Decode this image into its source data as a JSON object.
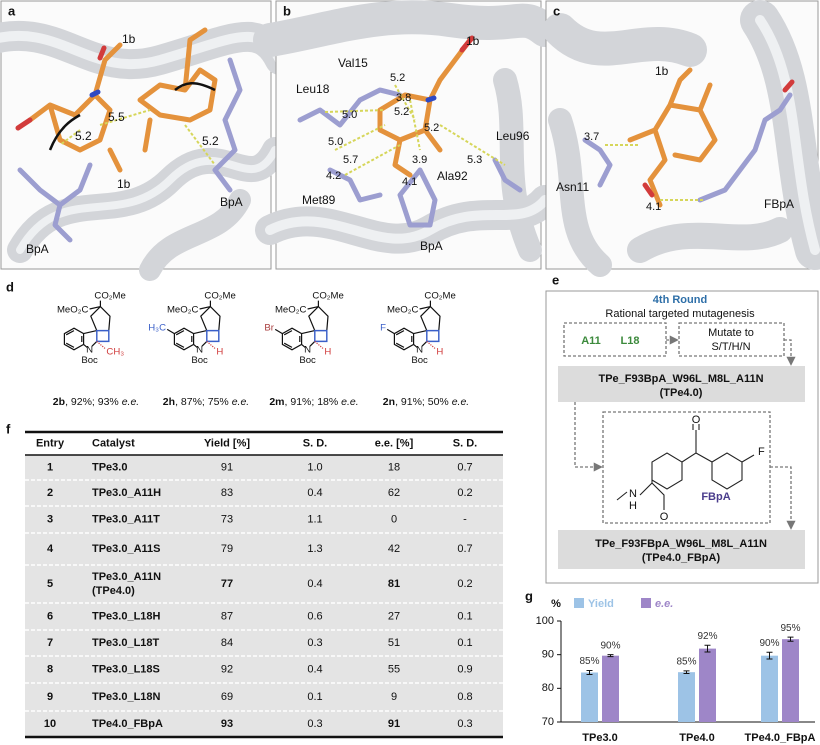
{
  "panel_a": {
    "label": "a",
    "texts": [
      "1b",
      "5.5",
      "5.2",
      "5.2",
      "1b",
      "BpA",
      "BpA"
    ]
  },
  "panel_b": {
    "label": "b",
    "texts": [
      "1b",
      "Val15",
      "5.2",
      "Leu18",
      "3.8",
      "5.0",
      "5.2",
      "5.2",
      "5.0",
      "5.7",
      "3.9",
      "4.2",
      "4.1",
      "Ala92",
      "5.3",
      "Leu96",
      "Met89",
      "BpA"
    ]
  },
  "panel_c": {
    "label": "c",
    "texts": [
      "1b",
      "3.7",
      "Asn11",
      "4.1",
      "FBpA"
    ]
  },
  "panel_d": {
    "label": "d",
    "compounds": [
      {
        "ester_top": "CO₂Me",
        "ester_left": "MeO₂C",
        "n": "N",
        "protecting_group": "Boc",
        "stereo": "CH₃",
        "id": "2b",
        "caption": ", 92%; 93% ",
        "ee": "e.e."
      },
      {
        "ester_top": "CO₂Me",
        "ester_left": "MeO₂C",
        "n": "N",
        "protecting_group": "Boc",
        "stereo": "H",
        "ring_substituent": "H₃C",
        "ring_substituent_color": "#3a5fc8",
        "id": "2h",
        "caption": ", 87%; 75% ",
        "ee": "e.e."
      },
      {
        "ester_top": "CO₂Me",
        "ester_left": "MeO₂C",
        "n": "N",
        "protecting_group": "Boc",
        "stereo": "H",
        "ring_substituent": "Br",
        "ring_substituent_color": "#a83c3c",
        "id": "2m",
        "caption": ", 91%; 18% ",
        "ee": "e.e."
      },
      {
        "ester_top": "CO₂Me",
        "ester_left": "MeO₂C",
        "n": "N",
        "protecting_group": "Boc",
        "stereo": "H",
        "ring_substituent": "F",
        "ring_substituent_color": "#3a5fc8",
        "id": "2n",
        "caption": ", 91%; 50% ",
        "ee": "e.e."
      }
    ]
  },
  "panel_e": {
    "label": "e",
    "round": "4th Round",
    "strategy": "Rational targeted mutagenesis",
    "site_1": "A11",
    "site_2": "L18",
    "mutate_line_1": "Mutate to",
    "mutate_line_2": "S/T/H/N",
    "variant_1": "TPe_F93BpA_W96L_M8L_A11N",
    "variant_1_alias": "(TPe4.0)",
    "structure_atoms": [
      "O",
      "F",
      "N",
      "H",
      "O"
    ],
    "structure_name": "FBpA",
    "variant_2": "TPe_F93FBpA_W96L_M8L_A11N",
    "variant_2_alias": "(TPe4.0_FBpA)"
  },
  "table": {
    "label": "f",
    "header": [
      "Entry",
      "Catalyst",
      "Yield [%]",
      "S. D.",
      "e.e. [%]",
      "S. D."
    ],
    "rows": [
      {
        "entry": "1",
        "catalyst": "TPe3.0",
        "yield": "91",
        "yield_sd": "1.0",
        "ee": "18",
        "ee_sd": "0.7"
      },
      {
        "entry": "2",
        "catalyst": "TPe3.0_A11H",
        "yield": "83",
        "yield_sd": "0.4",
        "ee": "62",
        "ee_sd": "0.2"
      },
      {
        "entry": "3",
        "catalyst": "TPe3.0_A11T",
        "yield": "73",
        "yield_sd": "1.1",
        "ee": "0",
        "ee_sd": "-"
      },
      {
        "entry": "4",
        "catalyst": "TPe3.0_A11S",
        "yield": "79",
        "yield_sd": "1.3",
        "ee": "42",
        "ee_sd": "0.7"
      },
      {
        "entry": "5",
        "catalyst": "TPe3.0_A11N",
        "catalyst_note": "(TPe4.0)",
        "yield": "77",
        "yield_sd": "0.4",
        "ee": "81",
        "ee_sd": "0.2",
        "bold_values": true
      },
      {
        "entry": "6",
        "catalyst": "TPe3.0_L18H",
        "yield": "87",
        "yield_sd": "0.6",
        "ee": "27",
        "ee_sd": "0.1"
      },
      {
        "entry": "7",
        "catalyst": "TPe3.0_L18T",
        "yield": "84",
        "yield_sd": "0.3",
        "ee": "51",
        "ee_sd": "0.1"
      },
      {
        "entry": "8",
        "catalyst": "TPe3.0_L18S",
        "yield": "92",
        "yield_sd": "0.4",
        "ee": "55",
        "ee_sd": "0.9"
      },
      {
        "entry": "9",
        "catalyst": "TPe3.0_L18N",
        "yield": "69",
        "yield_sd": "0.1",
        "ee": "9",
        "ee_sd": "0.8"
      },
      {
        "entry": "10",
        "catalyst": "TPe4.0_FBpA",
        "yield": "93",
        "yield_sd": "0.3",
        "ee": "91",
        "ee_sd": "0.3",
        "bold_values": true
      }
    ]
  },
  "chart_data": {
    "type": "bar",
    "label": "g",
    "y_label": "%",
    "categories": [
      "TPe3.0",
      "TPe4.0",
      "TPe4.0_FBpA"
    ],
    "series": [
      {
        "name": "Yield",
        "color": "#9dc3e6",
        "values": [
          84.7,
          84.8,
          89.7
        ],
        "errors": [
          0.6,
          0.4,
          1.0
        ],
        "value_labels": [
          "85%",
          "85%",
          "90%"
        ]
      },
      {
        "name": "e.e.",
        "color": "#9e86c8",
        "values": [
          89.7,
          91.8,
          94.6
        ],
        "errors": [
          0.3,
          1.0,
          0.6
        ],
        "value_labels": [
          "90%",
          "92%",
          "95%"
        ]
      }
    ],
    "ylim": [
      70,
      100
    ],
    "yticks": [
      70,
      80,
      90,
      100
    ]
  }
}
